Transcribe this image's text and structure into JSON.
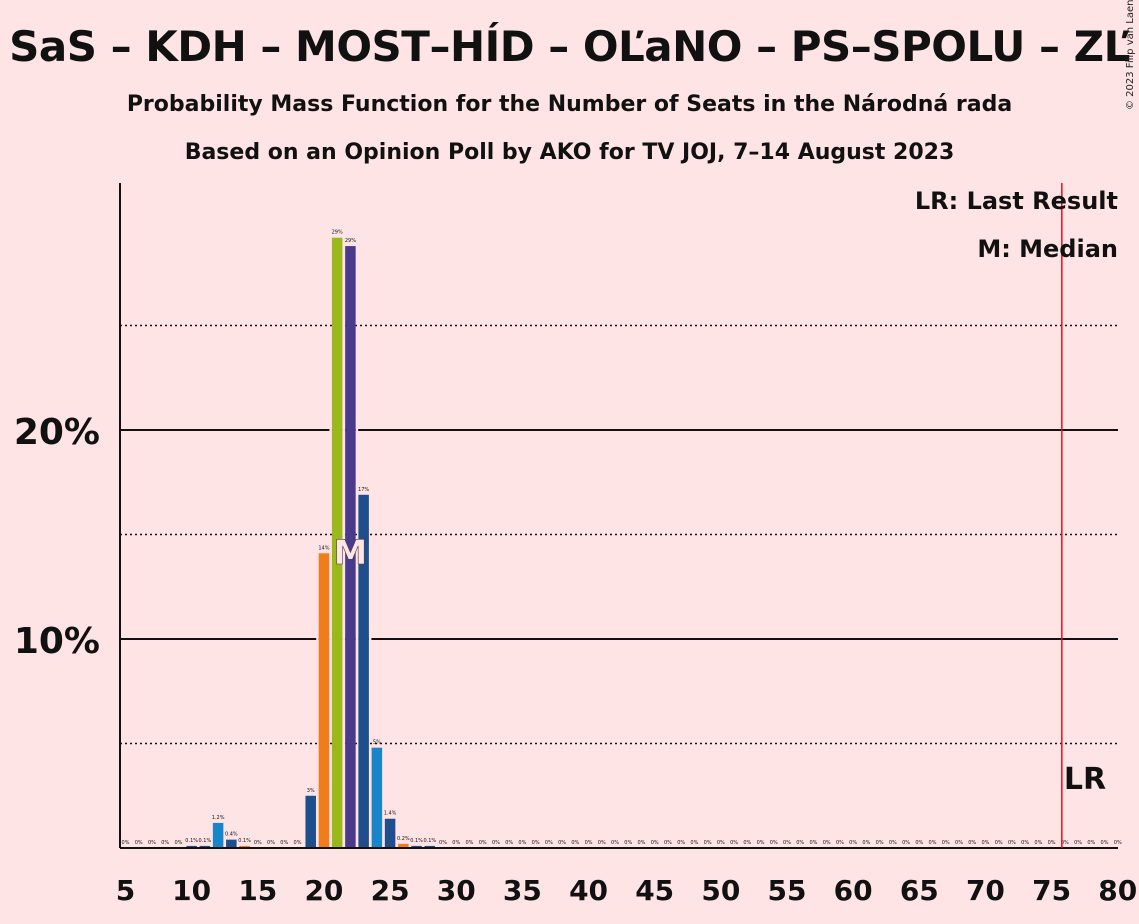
{
  "title": "SaS – KDH – MOST–HÍD – OĽaNO – PS–SPOLU – ZĽ",
  "subtitle_line1": "Probability Mass Function for the Number of Seats in the Národná rada",
  "subtitle_line2": "Based on an Opinion Poll by AKO for TV JOJ, 7–14 August 2023",
  "copyright": "© 2023 Filip van Laenen",
  "legend": {
    "last_result": "LR: Last Result",
    "median": "M: Median"
  },
  "markers": {
    "median_label": "M",
    "median_seat": 22,
    "last_result_label": "LR",
    "last_result_seat": 76
  },
  "colors": {
    "background": "#ffe4e6",
    "last_result_line": "#dd1122",
    "median_text": "#ffe4e6"
  },
  "chart_data": {
    "type": "bar",
    "x": [
      5,
      6,
      7,
      8,
      9,
      10,
      11,
      12,
      13,
      14,
      15,
      16,
      17,
      18,
      19,
      20,
      21,
      22,
      23,
      24,
      25,
      26,
      27,
      28,
      29,
      30,
      31,
      32,
      33,
      34,
      35,
      36,
      37,
      38,
      39,
      40,
      41,
      42,
      43,
      44,
      45,
      46,
      47,
      48,
      49,
      50,
      51,
      52,
      53,
      54,
      55,
      56,
      57,
      58,
      59,
      60,
      61,
      62,
      63,
      64,
      65,
      66,
      67,
      68,
      69,
      70,
      71,
      72,
      73,
      74,
      75,
      76,
      77,
      78,
      79,
      80
    ],
    "values": [
      0,
      0,
      0,
      0,
      0,
      0.1,
      0.1,
      1.2,
      0.4,
      0.1,
      0,
      0,
      0,
      0,
      2.5,
      14.1,
      29.2,
      28.8,
      16.9,
      4.8,
      1.4,
      0.2,
      0.1,
      0.1,
      0,
      0,
      0,
      0,
      0,
      0,
      0,
      0,
      0,
      0,
      0,
      0,
      0,
      0,
      0,
      0,
      0,
      0,
      0,
      0,
      0,
      0,
      0,
      0,
      0,
      0,
      0,
      0,
      0,
      0,
      0,
      0,
      0,
      0,
      0,
      0,
      0,
      0,
      0,
      0,
      0,
      0,
      0,
      0,
      0,
      0,
      0,
      0,
      0,
      0,
      0,
      0
    ],
    "labels": [
      "0%",
      "0%",
      "0%",
      "0%",
      "0%",
      "0.1%",
      "0.1%",
      "1.2%",
      "0.4%",
      "0.1%",
      "0%",
      "0%",
      "0%",
      "0%",
      "3%",
      "14%",
      "29%",
      "29%",
      "17%",
      "5%",
      "1.4%",
      "0.2%",
      "0.1%",
      "0.1%",
      "0%",
      "0%",
      "0%",
      "0%",
      "0%",
      "0%",
      "0%",
      "0%",
      "0%",
      "0%",
      "0%",
      "0%",
      "0%",
      "0%",
      "0%",
      "0%",
      "0%",
      "0%",
      "0%",
      "0%",
      "0%",
      "0%",
      "0%",
      "0%",
      "0%",
      "0%",
      "0%",
      "0%",
      "0%",
      "0%",
      "0%",
      "0%",
      "0%",
      "0%",
      "0%",
      "0%",
      "0%",
      "0%",
      "0%",
      "0%",
      "0%",
      "0%",
      "0%",
      "0%",
      "0%",
      "0%",
      "0%",
      "0%",
      "0%",
      "0%",
      "0%",
      "0%"
    ],
    "colors_by_seat": {
      "12": "#1a84c8",
      "13": "#1f4e8c",
      "14": "#f07c1a",
      "19": "#1f4e8c",
      "20": "#f07c1a",
      "21": "#9ab81a",
      "22": "#4a3a8c",
      "23": "#1f4e8c",
      "24": "#1a84c8",
      "25": "#1f4e8c",
      "26": "#f07c1a"
    },
    "default_color": "#1f4e8c",
    "xlim": [
      5,
      80
    ],
    "ylim": [
      0,
      31
    ],
    "x_ticks": [
      5,
      10,
      15,
      20,
      25,
      30,
      35,
      40,
      45,
      50,
      55,
      60,
      65,
      70,
      75,
      80
    ],
    "x_tick_labels": [
      "5",
      "10",
      "15",
      "20",
      "25",
      "30",
      "35",
      "40",
      "45",
      "50",
      "55",
      "60",
      "65",
      "70",
      "75",
      "80"
    ],
    "y_ticks_major": [
      10,
      20
    ],
    "y_tick_labels": [
      "10%",
      "20%"
    ],
    "y_ticks_minor": [
      5,
      15,
      25
    ],
    "xlabel": "",
    "ylabel": "",
    "grid": true,
    "legend_position": "top-right"
  }
}
